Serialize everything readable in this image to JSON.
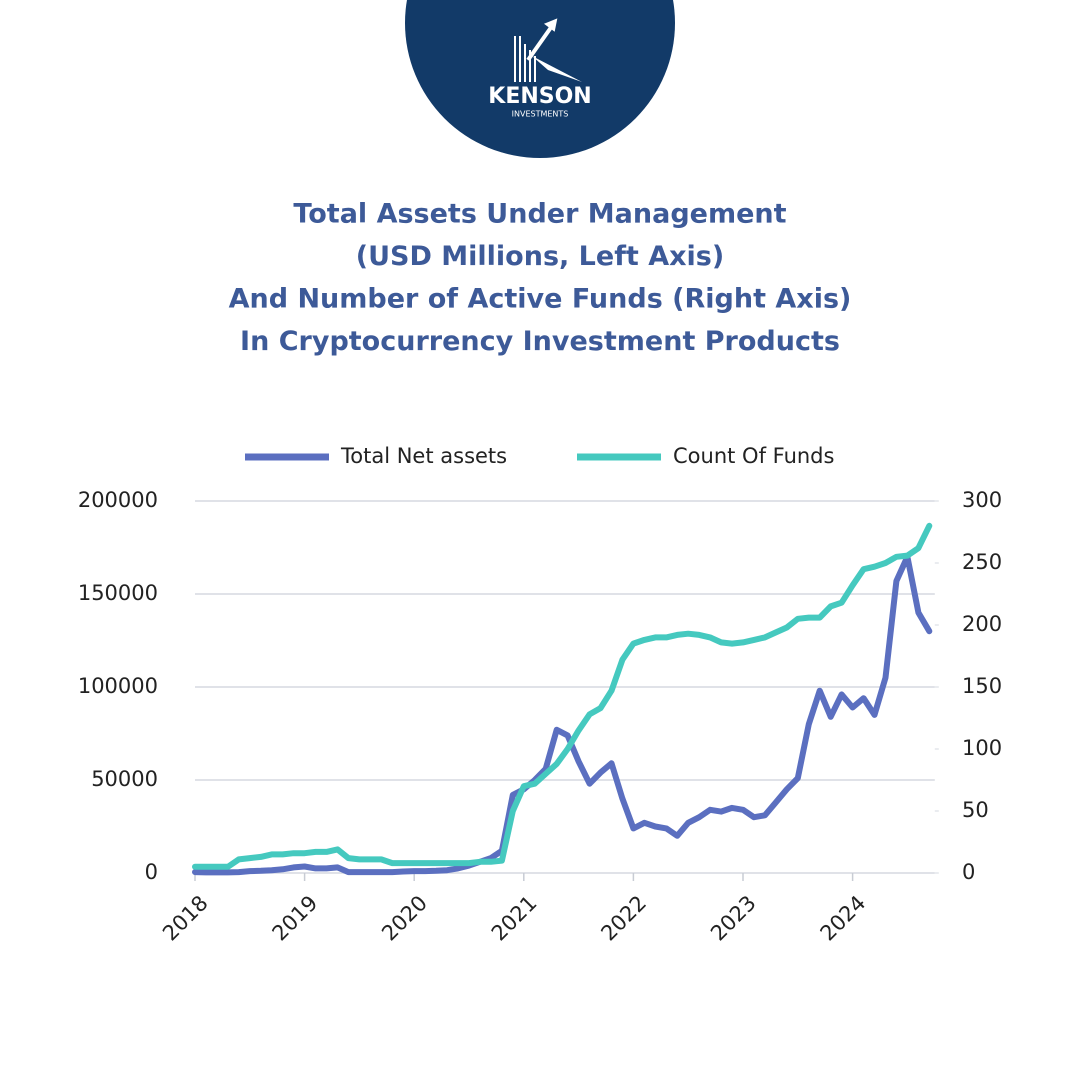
{
  "logo": {
    "name": "KENSON",
    "tagline": "INVESTMENTS"
  },
  "chart_data": {
    "type": "line",
    "title": [
      "Total Assets Under Management",
      "(USD Millions, Left Axis)",
      "And Number of Active Funds (Right Axis)",
      "In Cryptocurrency Investment Products"
    ],
    "x": [
      2018.0,
      2018.1,
      2018.2,
      2018.3,
      2018.4,
      2018.5,
      2018.6,
      2018.7,
      2018.8,
      2018.9,
      2019.0,
      2019.1,
      2019.2,
      2019.3,
      2019.4,
      2019.5,
      2019.6,
      2019.7,
      2019.8,
      2019.9,
      2020.0,
      2020.1,
      2020.2,
      2020.3,
      2020.4,
      2020.5,
      2020.6,
      2020.7,
      2020.8,
      2020.9,
      2021.0,
      2021.1,
      2021.2,
      2021.3,
      2021.4,
      2021.5,
      2021.6,
      2021.7,
      2021.8,
      2021.9,
      2022.0,
      2022.1,
      2022.2,
      2022.3,
      2022.4,
      2022.5,
      2022.6,
      2022.7,
      2022.8,
      2022.9,
      2023.0,
      2023.1,
      2023.2,
      2023.3,
      2023.4,
      2023.5,
      2023.6,
      2023.7,
      2023.8,
      2023.9,
      2024.0,
      2024.1,
      2024.2,
      2024.3,
      2024.4,
      2024.5,
      2024.6,
      2024.7
    ],
    "series": [
      {
        "name": "Total Net assets",
        "color": "#5b6fc0",
        "values": [
          500,
          300,
          300,
          300,
          500,
          1000,
          1200,
          1500,
          2000,
          3000,
          3500,
          2500,
          2500,
          3000,
          500,
          500,
          500,
          500,
          500,
          800,
          1000,
          1000,
          1200,
          1500,
          2500,
          4000,
          6000,
          8000,
          12000,
          42000,
          45000,
          50000,
          56000,
          77000,
          74000,
          60000,
          48000,
          54000,
          59000,
          40000,
          24000,
          27000,
          25000,
          24000,
          20000,
          27000,
          30000,
          34000,
          33000,
          35000,
          34000,
          30000,
          31000,
          38000,
          45000,
          51000,
          80000,
          98000,
          84000,
          96000,
          89000,
          94000,
          85000,
          105000,
          157000,
          170000,
          140000,
          130000
        ]
      },
      {
        "name": "Count Of Funds",
        "color": "#45c9bf",
        "axis": "y2",
        "values": [
          5,
          5,
          5,
          5,
          11,
          12,
          13,
          15,
          15,
          16,
          16,
          17,
          17,
          19,
          12,
          11,
          11,
          11,
          8,
          8,
          8,
          8,
          8,
          8,
          8,
          8,
          9,
          9,
          10,
          50,
          70,
          72,
          80,
          88,
          100,
          115,
          128,
          133,
          147,
          172,
          185,
          188,
          190,
          190,
          192,
          193,
          192,
          190,
          186,
          185,
          186,
          188,
          190,
          194,
          198,
          205,
          206,
          206,
          215,
          218,
          232,
          245,
          247,
          250,
          255,
          256,
          262,
          280
        ]
      }
    ],
    "xlim": [
      2018,
      2024.75
    ],
    "xticks": [
      2018,
      2019,
      2020,
      2021,
      2022,
      2023,
      2024
    ],
    "ylim": [
      0,
      200000
    ],
    "yticks": [
      0,
      50000,
      100000,
      150000,
      200000
    ],
    "y2lim": [
      0,
      300
    ],
    "y2ticks": [
      0,
      50,
      100,
      150,
      200,
      250,
      300
    ],
    "grid": true
  }
}
